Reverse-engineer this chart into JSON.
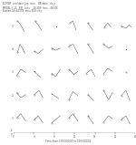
{
  "title_line1": "ECMWF  verif date: Jan  lon=    OB data:   ob_y",
  "title_line2": "MODEL: [ 21, -83]   lon=    28.30N  lon=   46.10E",
  "title_line3": "Station id=40373  stn= BIN =hy",
  "xlabel": "Time from 1993/01/03 to 1993/01/02",
  "nrows": 5,
  "ncols": 7,
  "figsize": [
    1.5,
    1.59
  ],
  "dpi": 100,
  "lw": 0.35,
  "ms": 0.6,
  "row_labels": [
    "5",
    "4",
    "3",
    "2",
    "1"
  ],
  "patterns": [
    {
      "type": "curve",
      "x": [
        0.25,
        0.45,
        0.55,
        0.65
      ],
      "y": [
        0.75,
        0.55,
        0.4,
        0.25
      ]
    },
    {
      "type": "curve",
      "x": [
        0.25,
        0.45,
        0.65
      ],
      "y": [
        0.75,
        0.55,
        0.3
      ]
    },
    {
      "type": "dot",
      "x": [
        0.5
      ],
      "y": [
        0.5
      ]
    },
    {
      "type": "curve",
      "x": [
        0.25,
        0.45,
        0.65
      ],
      "y": [
        0.65,
        0.75,
        0.3
      ]
    },
    {
      "type": "line",
      "x": [
        0.3,
        0.6
      ],
      "y": [
        0.65,
        0.3
      ]
    },
    {
      "type": "curve",
      "x": [
        0.25,
        0.45,
        0.65
      ],
      "y": [
        0.45,
        0.65,
        0.45
      ]
    },
    {
      "type": "curve",
      "x": [
        0.2,
        0.5,
        0.7,
        0.85
      ],
      "y": [
        0.5,
        0.4,
        0.55,
        0.45
      ]
    },
    {
      "type": "curve",
      "x": [
        0.25,
        0.4,
        0.55,
        0.7
      ],
      "y": [
        0.35,
        0.75,
        0.55,
        0.3
      ]
    },
    {
      "type": "curve",
      "x": [
        0.2,
        0.45,
        0.75
      ],
      "y": [
        0.4,
        0.3,
        0.5
      ]
    },
    {
      "type": "curve",
      "x": [
        0.2,
        0.45,
        0.75
      ],
      "y": [
        0.55,
        0.45,
        0.55
      ]
    },
    {
      "type": "curve",
      "x": [
        0.2,
        0.45,
        0.75
      ],
      "y": [
        0.65,
        0.75,
        0.3
      ]
    },
    {
      "type": "line",
      "x": [
        0.3,
        0.65
      ],
      "y": [
        0.75,
        0.3
      ]
    },
    {
      "type": "curve",
      "x": [
        0.2,
        0.5,
        0.75
      ],
      "y": [
        0.75,
        0.55,
        0.65
      ]
    },
    {
      "type": "dot",
      "x": [
        0.5
      ],
      "y": [
        0.5
      ]
    },
    {
      "type": "curve",
      "x": [
        0.2,
        0.45,
        0.75
      ],
      "y": [
        0.35,
        0.65,
        0.5
      ]
    },
    {
      "type": "dot_line",
      "x": [
        0.2,
        0.6
      ],
      "y": [
        0.55,
        0.25
      ]
    },
    {
      "type": "curve",
      "x": [
        0.2,
        0.45,
        0.75
      ],
      "y": [
        0.45,
        0.3,
        0.65
      ]
    },
    {
      "type": "curve",
      "x": [
        0.2,
        0.5,
        0.75
      ],
      "y": [
        0.65,
        0.4,
        0.55
      ]
    },
    {
      "type": "curve",
      "x": [
        0.2,
        0.5,
        0.75
      ],
      "y": [
        0.45,
        0.65,
        0.3
      ]
    },
    {
      "type": "curve",
      "x": [
        0.2,
        0.45,
        0.75
      ],
      "y": [
        0.45,
        0.7,
        0.55
      ]
    },
    {
      "type": "circle",
      "x": [
        0.5
      ],
      "y": [
        0.5
      ]
    },
    {
      "type": "curve",
      "x": [
        0.2,
        0.45,
        0.75
      ],
      "y": [
        0.65,
        0.4,
        0.55
      ]
    },
    {
      "type": "curve",
      "x": [
        0.2,
        0.5,
        0.75
      ],
      "y": [
        0.55,
        0.75,
        0.4
      ]
    },
    {
      "type": "dot_line",
      "x": [
        0.2,
        0.65
      ],
      "y": [
        0.6,
        0.35
      ]
    },
    {
      "type": "curve",
      "x": [
        0.2,
        0.45,
        0.75
      ],
      "y": [
        0.3,
        0.7,
        0.5
      ]
    },
    {
      "type": "line",
      "x": [
        0.3,
        0.65
      ],
      "y": [
        0.55,
        0.25
      ]
    },
    {
      "type": "curve",
      "x": [
        0.2,
        0.5,
        0.75
      ],
      "y": [
        0.75,
        0.3,
        0.65
      ]
    },
    {
      "type": "curve",
      "x": [
        0.2,
        0.5,
        0.75
      ],
      "y": [
        0.5,
        0.75,
        0.25
      ]
    },
    {
      "type": "curve",
      "x": [
        0.2,
        0.45,
        0.75
      ],
      "y": [
        0.55,
        0.75,
        0.4
      ]
    },
    {
      "type": "curve",
      "x": [
        0.2,
        0.45,
        0.75
      ],
      "y": [
        0.45,
        0.65,
        0.3
      ]
    },
    {
      "type": "curve",
      "x": [
        0.2,
        0.5,
        0.75
      ],
      "y": [
        0.3,
        0.5,
        0.65
      ]
    },
    {
      "type": "curve",
      "x": [
        0.2,
        0.45,
        0.75
      ],
      "y": [
        0.55,
        0.75,
        0.4
      ]
    },
    {
      "type": "line",
      "x": [
        0.3,
        0.65
      ],
      "y": [
        0.65,
        0.25
      ]
    },
    {
      "type": "curve",
      "x": [
        0.2,
        0.5,
        0.75
      ],
      "y": [
        0.35,
        0.65,
        0.5
      ]
    },
    {
      "type": "curve",
      "x": [
        0.2,
        0.5,
        0.75
      ],
      "y": [
        0.45,
        0.65,
        0.25
      ]
    }
  ]
}
